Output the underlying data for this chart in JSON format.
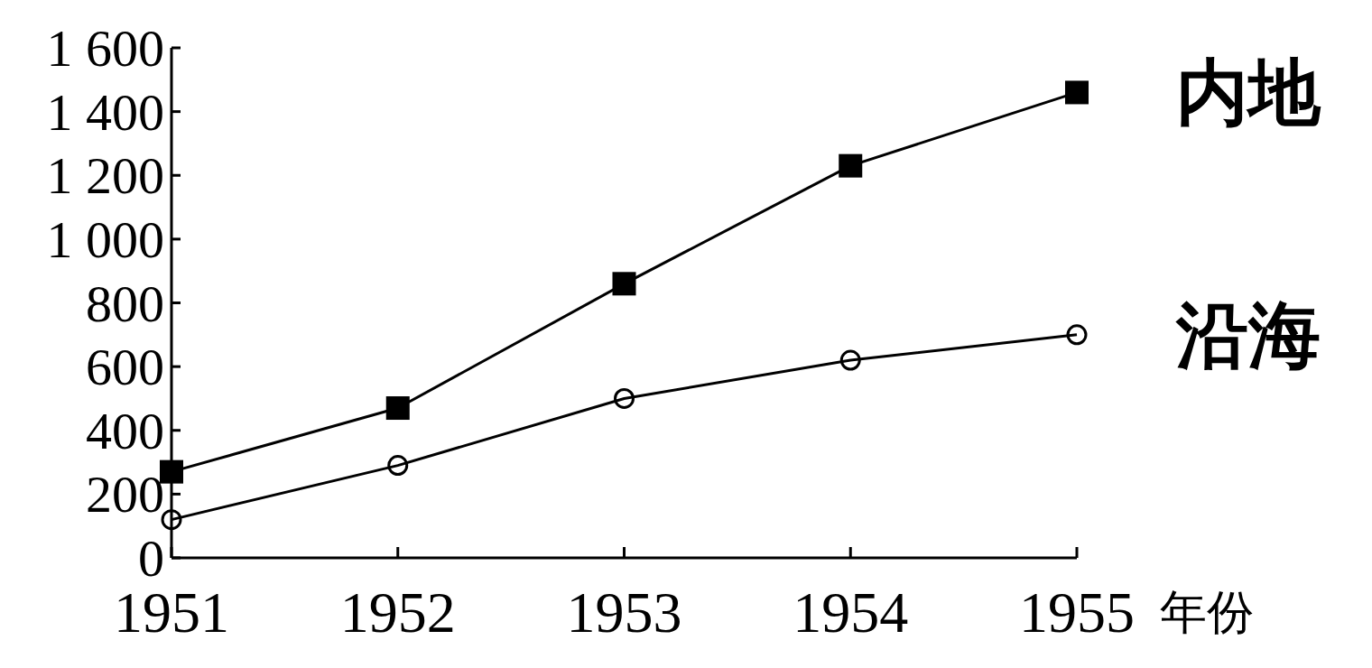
{
  "chart_data": {
    "type": "line",
    "xlabel": "年份",
    "x": [
      1951,
      1952,
      1953,
      1954,
      1955
    ],
    "xlim": [
      1951,
      1955
    ],
    "xticks": [
      1951,
      1952,
      1953,
      1954,
      1955
    ],
    "ylim": [
      0,
      1600
    ],
    "yticks": [
      0,
      200,
      400,
      600,
      800,
      {
        "value": 1000,
        "label": "1 000"
      },
      {
        "value": 1200,
        "label": "1 200"
      },
      {
        "value": 1400,
        "label": "1 400"
      },
      {
        "value": 1600,
        "label": "1 600"
      }
    ],
    "series": [
      {
        "name": "内地",
        "color": "#000000",
        "marker": "square",
        "values": [
          270,
          470,
          860,
          1230,
          1460
        ]
      },
      {
        "name": "沿海",
        "color": "#000000",
        "marker": "circle",
        "values": [
          120,
          290,
          500,
          620,
          700
        ]
      }
    ]
  }
}
